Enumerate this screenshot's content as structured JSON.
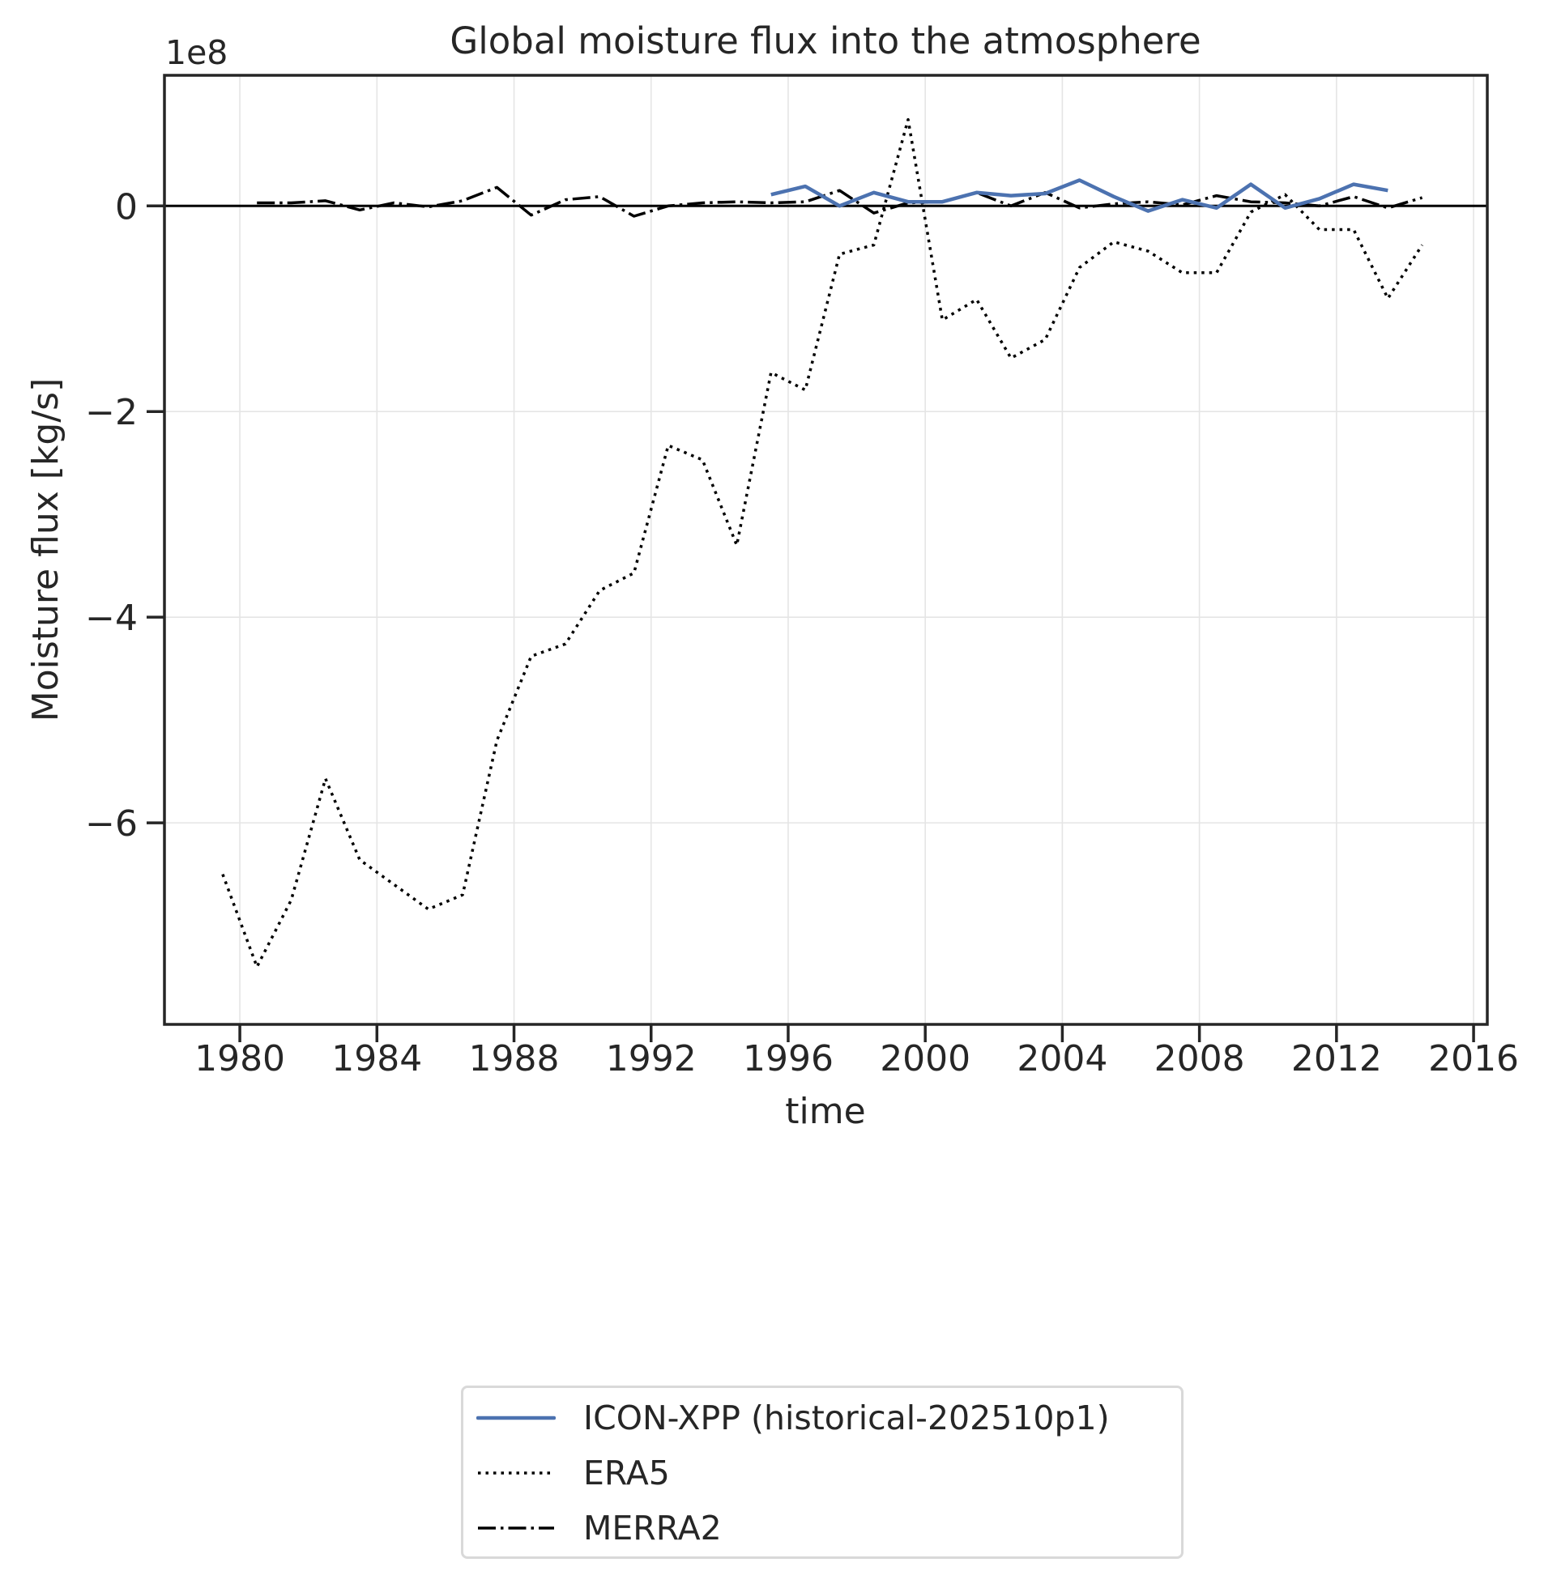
{
  "chart_data": {
    "type": "line",
    "title": "Global moisture flux into the atmosphere",
    "xlabel": "time",
    "ylabel": "Moisture flux [kg/s]",
    "y_offset_label": "1e8",
    "y_scale_factor": 100000000,
    "xlim": [
      1977.8,
      2016.4
    ],
    "ylim": [
      -7.96,
      1.27
    ],
    "x_ticks": [
      1980,
      1984,
      1988,
      1992,
      1996,
      2000,
      2004,
      2008,
      2012,
      2016
    ],
    "x_tick_labels": [
      "1980",
      "1984",
      "1988",
      "1992",
      "1996",
      "2000",
      "2004",
      "2008",
      "2012",
      "2016"
    ],
    "y_ticks": [
      0,
      -2,
      -4,
      -6
    ],
    "y_tick_labels": [
      "0",
      "−2",
      "−4",
      "−6"
    ],
    "grid": true,
    "reference_line": {
      "y": 0,
      "color": "#000000"
    },
    "legend_position": "below plot, centered",
    "series": [
      {
        "name": "ICON-XPP (historical-202510p1)",
        "color": "#4c72b0",
        "linestyle": "solid",
        "x": [
          1995.5,
          1996.5,
          1997.5,
          1998.5,
          1999.5,
          2000.5,
          2001.5,
          2002.5,
          2003.5,
          2004.5,
          2005.5,
          2006.5,
          2007.5,
          2008.5,
          2009.5,
          2010.5,
          2011.5,
          2012.5,
          2013.5
        ],
        "values": [
          0.11,
          0.19,
          0.0,
          0.13,
          0.04,
          0.04,
          0.13,
          0.1,
          0.12,
          0.25,
          0.09,
          -0.05,
          0.06,
          -0.02,
          0.21,
          -0.02,
          0.07,
          0.21,
          0.15
        ]
      },
      {
        "name": "ERA5",
        "color": "#000000",
        "linestyle": "dotted",
        "x": [
          1979.5,
          1980.5,
          1981.5,
          1982.5,
          1983.5,
          1984.5,
          1985.5,
          1986.5,
          1987.5,
          1988.5,
          1989.5,
          1990.5,
          1991.5,
          1992.5,
          1993.5,
          1994.5,
          1995.5,
          1996.5,
          1997.5,
          1998.5,
          1999.5,
          2000.5,
          2001.5,
          2002.5,
          2003.5,
          2004.5,
          2005.5,
          2006.5,
          2007.5,
          2008.5,
          2009.5,
          2010.5,
          2011.5,
          2012.5,
          2013.5,
          2014.5
        ],
        "values": [
          -6.5,
          -7.4,
          -6.75,
          -5.57,
          -6.36,
          -6.6,
          -6.84,
          -6.7,
          -5.2,
          -4.38,
          -4.26,
          -3.74,
          -3.57,
          -2.33,
          -2.47,
          -3.3,
          -1.62,
          -1.79,
          -0.47,
          -0.38,
          0.84,
          -1.11,
          -0.91,
          -1.48,
          -1.3,
          -0.6,
          -0.35,
          -0.44,
          -0.65,
          -0.65,
          -0.06,
          0.11,
          -0.23,
          -0.23,
          -0.9,
          -0.38
        ]
      },
      {
        "name": "MERRA2",
        "color": "#000000",
        "linestyle": "dashdot",
        "x": [
          1980.5,
          1981.5,
          1982.5,
          1983.5,
          1984.5,
          1985.5,
          1986.5,
          1987.5,
          1988.5,
          1989.5,
          1990.5,
          1991.5,
          1992.5,
          1993.5,
          1994.5,
          1995.5,
          1996.5,
          1997.5,
          1998.5,
          1999.5,
          2000.5,
          2001.5,
          2002.5,
          2003.5,
          2004.5,
          2005.5,
          2006.5,
          2007.5,
          2008.5,
          2009.5,
          2010.5,
          2011.5,
          2012.5,
          2013.5,
          2014.5
        ],
        "values": [
          0.03,
          0.03,
          0.05,
          -0.04,
          0.03,
          -0.01,
          0.05,
          0.18,
          -0.09,
          0.06,
          0.09,
          -0.1,
          0.0,
          0.03,
          0.04,
          0.03,
          0.04,
          0.15,
          -0.07,
          0.03,
          0.04,
          0.13,
          0.0,
          0.13,
          -0.02,
          0.02,
          0.04,
          0.01,
          0.1,
          0.04,
          0.03,
          0.0,
          0.09,
          -0.02,
          0.08
        ]
      }
    ]
  },
  "legend": {
    "items": [
      {
        "label": "ICON-XPP (historical-202510p1)",
        "color": "#4c72b0",
        "style": "solid"
      },
      {
        "label": "ERA5",
        "color": "#000000",
        "style": "dotted"
      },
      {
        "label": "MERRA2",
        "color": "#000000",
        "style": "dashdot"
      }
    ]
  }
}
